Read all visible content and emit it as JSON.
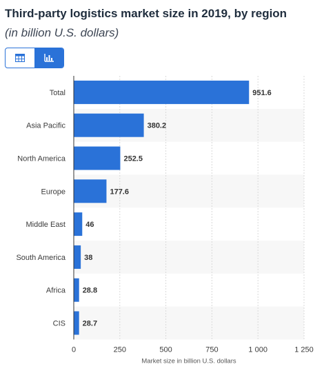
{
  "header": {
    "title": "Third-party logistics market size in 2019, by region",
    "subtitle": "(in billion U.S. dollars)"
  },
  "view_toggle": {
    "table_icon": "table-icon",
    "chart_icon": "bar-chart-icon",
    "active": "chart"
  },
  "colors": {
    "bar": "#2a72d8",
    "accent": "#2a72d8",
    "band": "#f7f7f7"
  },
  "chart_data": {
    "type": "bar",
    "orientation": "horizontal",
    "categories": [
      "Total",
      "Asia Pacific",
      "North America",
      "Europe",
      "Middle East",
      "South America",
      "Africa",
      "CIS"
    ],
    "values": [
      951.6,
      380.2,
      252.5,
      177.6,
      46,
      38,
      28.8,
      28.7
    ],
    "value_labels": [
      "951.6",
      "380.2",
      "252.5",
      "177.6",
      "46",
      "38",
      "28.8",
      "28.7"
    ],
    "xlabel": "Market size in billion U.S. dollars",
    "ylabel": "",
    "xlim": [
      0,
      1250
    ],
    "xticks": [
      0,
      250,
      500,
      750,
      1000,
      1250
    ],
    "xtick_labels": [
      "0",
      "250",
      "500",
      "750",
      "1 000",
      "1 250"
    ],
    "grid": true,
    "legend": "none"
  }
}
